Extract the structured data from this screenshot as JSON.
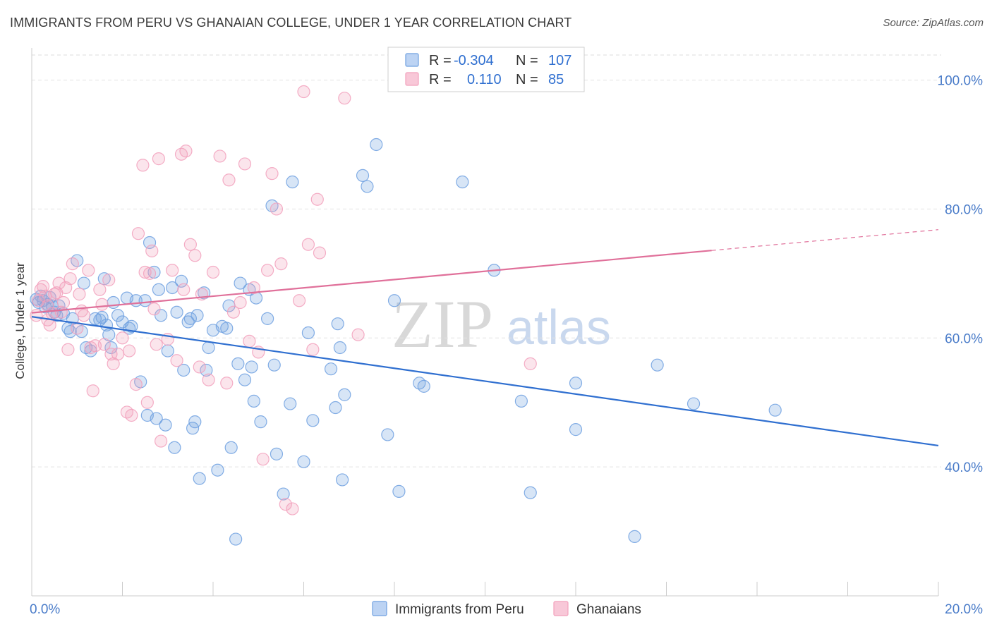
{
  "title": "IMMIGRANTS FROM PERU VS GHANAIAN COLLEGE, UNDER 1 YEAR CORRELATION CHART",
  "source": "Source: ZipAtlas.com",
  "watermark": {
    "zip": "ZIP",
    "atlas": "atlas"
  },
  "chart_data": {
    "type": "scatter",
    "ylabel": "College, Under 1 year",
    "xlim": [
      0,
      20
    ],
    "ylim": [
      20,
      104
    ],
    "x_tick_labels": [
      {
        "value": 0,
        "label": "0.0%"
      },
      {
        "value": 20,
        "label": "20.0%"
      }
    ],
    "y_ticks": [
      {
        "value": 40,
        "label": "40.0%"
      },
      {
        "value": 60,
        "label": "60.0%"
      },
      {
        "value": 80,
        "label": "80.0%"
      },
      {
        "value": 100,
        "label": "100.0%"
      }
    ],
    "grid": true,
    "legend_position": "top-center",
    "series": [
      {
        "name": "Immigrants from Peru",
        "color": "#6fa0e0",
        "line_color": "#2f6fd0",
        "R": "-0.304",
        "N": "107",
        "trend": {
          "x0": 0,
          "y0": 63.3,
          "x1": 20,
          "y1": 43.3,
          "dashed_from": null
        },
        "points": [
          [
            0.1,
            66.0
          ],
          [
            0.15,
            65.5
          ],
          [
            0.2,
            66.5
          ],
          [
            0.25,
            65.8
          ],
          [
            0.3,
            64.8
          ],
          [
            0.35,
            65.2
          ],
          [
            0.4,
            66.3
          ],
          [
            0.45,
            65.0
          ],
          [
            0.5,
            64.0
          ],
          [
            0.55,
            63.5
          ],
          [
            0.6,
            65.0
          ],
          [
            0.7,
            63.8
          ],
          [
            0.8,
            61.5
          ],
          [
            0.85,
            61.0
          ],
          [
            0.9,
            63.0
          ],
          [
            1.0,
            72.0
          ],
          [
            1.1,
            61.0
          ],
          [
            1.15,
            68.5
          ],
          [
            1.2,
            58.5
          ],
          [
            1.3,
            58.0
          ],
          [
            1.4,
            63.0
          ],
          [
            1.5,
            62.8
          ],
          [
            1.55,
            63.2
          ],
          [
            1.6,
            69.2
          ],
          [
            1.65,
            62.0
          ],
          [
            1.7,
            60.5
          ],
          [
            1.75,
            58.5
          ],
          [
            1.8,
            65.5
          ],
          [
            1.9,
            63.5
          ],
          [
            2.0,
            62.5
          ],
          [
            2.1,
            66.2
          ],
          [
            2.15,
            61.5
          ],
          [
            2.2,
            61.8
          ],
          [
            2.3,
            65.8
          ],
          [
            2.4,
            53.2
          ],
          [
            2.5,
            65.8
          ],
          [
            2.55,
            48.0
          ],
          [
            2.6,
            74.8
          ],
          [
            2.7,
            70.2
          ],
          [
            2.75,
            47.5
          ],
          [
            2.8,
            67.5
          ],
          [
            2.85,
            63.5
          ],
          [
            2.95,
            46.5
          ],
          [
            3.0,
            58.0
          ],
          [
            3.1,
            67.8
          ],
          [
            3.15,
            43.0
          ],
          [
            3.2,
            64.0
          ],
          [
            3.3,
            68.8
          ],
          [
            3.35,
            55.0
          ],
          [
            3.45,
            62.5
          ],
          [
            3.5,
            63.0
          ],
          [
            3.55,
            46.0
          ],
          [
            3.6,
            47.0
          ],
          [
            3.65,
            63.5
          ],
          [
            3.7,
            38.2
          ],
          [
            3.8,
            67.0
          ],
          [
            3.85,
            55.0
          ],
          [
            3.9,
            58.5
          ],
          [
            4.0,
            61.2
          ],
          [
            4.1,
            39.5
          ],
          [
            4.2,
            61.8
          ],
          [
            4.3,
            61.5
          ],
          [
            4.35,
            65.0
          ],
          [
            4.4,
            43.0
          ],
          [
            4.5,
            28.8
          ],
          [
            4.55,
            56.0
          ],
          [
            4.6,
            68.5
          ],
          [
            4.7,
            53.5
          ],
          [
            4.8,
            67.5
          ],
          [
            4.85,
            55.5
          ],
          [
            4.9,
            50.2
          ],
          [
            4.95,
            66.2
          ],
          [
            5.05,
            47.0
          ],
          [
            5.2,
            63.0
          ],
          [
            5.3,
            80.5
          ],
          [
            5.35,
            55.8
          ],
          [
            5.4,
            42.0
          ],
          [
            5.55,
            35.8
          ],
          [
            5.7,
            49.8
          ],
          [
            5.75,
            84.2
          ],
          [
            6.0,
            40.8
          ],
          [
            6.1,
            60.8
          ],
          [
            6.2,
            47.2
          ],
          [
            6.6,
            55.2
          ],
          [
            6.7,
            49.2
          ],
          [
            6.75,
            62.2
          ],
          [
            6.8,
            58.5
          ],
          [
            6.85,
            38.0
          ],
          [
            6.9,
            51.2
          ],
          [
            7.3,
            85.2
          ],
          [
            7.4,
            83.5
          ],
          [
            7.6,
            90.0
          ],
          [
            7.85,
            45.0
          ],
          [
            8.0,
            65.8
          ],
          [
            8.1,
            36.2
          ],
          [
            8.55,
            53.0
          ],
          [
            8.65,
            52.5
          ],
          [
            9.5,
            84.2
          ],
          [
            10.2,
            70.5
          ],
          [
            10.8,
            50.2
          ],
          [
            11.0,
            36.0
          ],
          [
            12.0,
            53.0
          ],
          [
            12.0,
            45.8
          ],
          [
            13.3,
            29.2
          ],
          [
            13.8,
            55.8
          ],
          [
            14.6,
            49.8
          ],
          [
            16.4,
            48.8
          ]
        ]
      },
      {
        "name": "Ghanaians",
        "color": "#f2a0bc",
        "line_color": "#e0709a",
        "R": "0.110",
        "N": "85",
        "trend": {
          "x0": 0,
          "y0": 63.9,
          "x1": 20,
          "y1": 76.8,
          "dashed_from": 15
        },
        "points": [
          [
            0.1,
            63.5
          ],
          [
            0.15,
            65.8
          ],
          [
            0.2,
            67.5
          ],
          [
            0.25,
            68.0
          ],
          [
            0.3,
            66.5
          ],
          [
            0.35,
            65.0
          ],
          [
            0.4,
            62.0
          ],
          [
            0.45,
            63.8
          ],
          [
            0.5,
            66.8
          ],
          [
            0.55,
            67.0
          ],
          [
            0.6,
            68.5
          ],
          [
            0.65,
            64.0
          ],
          [
            0.7,
            65.5
          ],
          [
            0.75,
            67.8
          ],
          [
            0.8,
            58.2
          ],
          [
            0.85,
            69.2
          ],
          [
            0.9,
            71.5
          ],
          [
            1.0,
            61.5
          ],
          [
            1.05,
            66.8
          ],
          [
            1.1,
            64.2
          ],
          [
            1.15,
            63.5
          ],
          [
            1.25,
            70.5
          ],
          [
            1.3,
            58.5
          ],
          [
            1.35,
            51.8
          ],
          [
            1.4,
            58.8
          ],
          [
            1.5,
            67.5
          ],
          [
            1.6,
            59.0
          ],
          [
            1.7,
            69.0
          ],
          [
            1.75,
            57.5
          ],
          [
            1.8,
            56.0
          ],
          [
            1.9,
            57.5
          ],
          [
            2.0,
            60.0
          ],
          [
            2.1,
            48.5
          ],
          [
            2.15,
            58.0
          ],
          [
            2.2,
            48.0
          ],
          [
            2.3,
            52.8
          ],
          [
            2.35,
            76.2
          ],
          [
            2.45,
            86.8
          ],
          [
            2.5,
            70.2
          ],
          [
            2.55,
            50.0
          ],
          [
            2.6,
            70.0
          ],
          [
            2.65,
            73.5
          ],
          [
            2.7,
            64.5
          ],
          [
            2.75,
            59.0
          ],
          [
            2.8,
            87.8
          ],
          [
            2.85,
            44.0
          ],
          [
            3.0,
            59.8
          ],
          [
            3.1,
            70.5
          ],
          [
            3.2,
            56.5
          ],
          [
            3.3,
            88.5
          ],
          [
            3.35,
            67.5
          ],
          [
            3.4,
            89.0
          ],
          [
            3.5,
            74.5
          ],
          [
            3.6,
            72.8
          ],
          [
            3.7,
            55.5
          ],
          [
            3.75,
            66.8
          ],
          [
            3.9,
            53.5
          ],
          [
            4.0,
            70.2
          ],
          [
            4.15,
            88.2
          ],
          [
            4.3,
            53.0
          ],
          [
            4.35,
            84.5
          ],
          [
            4.45,
            64.0
          ],
          [
            4.6,
            65.5
          ],
          [
            4.7,
            87.0
          ],
          [
            4.8,
            59.5
          ],
          [
            4.9,
            67.8
          ],
          [
            5.0,
            57.8
          ],
          [
            5.1,
            41.2
          ],
          [
            5.2,
            70.5
          ],
          [
            5.3,
            85.5
          ],
          [
            5.4,
            80.0
          ],
          [
            5.5,
            71.5
          ],
          [
            5.6,
            34.2
          ],
          [
            5.75,
            33.5
          ],
          [
            5.9,
            65.8
          ],
          [
            6.0,
            98.2
          ],
          [
            6.1,
            74.5
          ],
          [
            6.2,
            58.2
          ],
          [
            6.3,
            81.5
          ],
          [
            6.35,
            73.2
          ],
          [
            6.9,
            97.2
          ],
          [
            7.2,
            60.5
          ],
          [
            11.0,
            56.0
          ],
          [
            0.35,
            62.8
          ],
          [
            1.55,
            65.2
          ]
        ]
      }
    ]
  }
}
